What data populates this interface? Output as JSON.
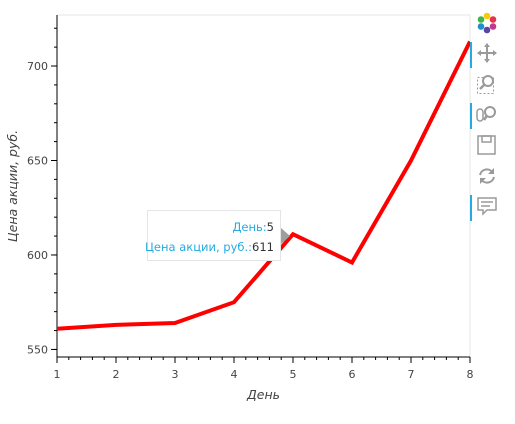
{
  "chart_data": {
    "type": "line",
    "x": [
      1,
      2,
      3,
      4,
      5,
      6,
      7,
      8
    ],
    "values": [
      561,
      563,
      564,
      575,
      611,
      596,
      650,
      713
    ],
    "xlabel": "День",
    "ylabel": "Цена акции, руб.",
    "xlim": [
      1,
      8
    ],
    "ylim": [
      546,
      727
    ],
    "xticks": [
      "1",
      "2",
      "3",
      "4",
      "5",
      "6",
      "7",
      "8"
    ],
    "yticks": [
      "550",
      "600",
      "650",
      "700"
    ],
    "line_color": "#ff0000",
    "grid": false
  },
  "tooltip": {
    "rows": [
      {
        "key": "День:",
        "value": "5"
      },
      {
        "key": "Цена акции, руб.:",
        "value": "611"
      }
    ]
  },
  "toolbar": {
    "tools": [
      "bokeh-logo-icon",
      "pan-icon",
      "box-zoom-icon",
      "wheel-zoom-icon",
      "save-icon",
      "reset-icon",
      "hover-icon"
    ],
    "active": [
      "pan-icon",
      "wheel-zoom-icon",
      "hover-icon"
    ],
    "accent_color": "#26aae1"
  }
}
